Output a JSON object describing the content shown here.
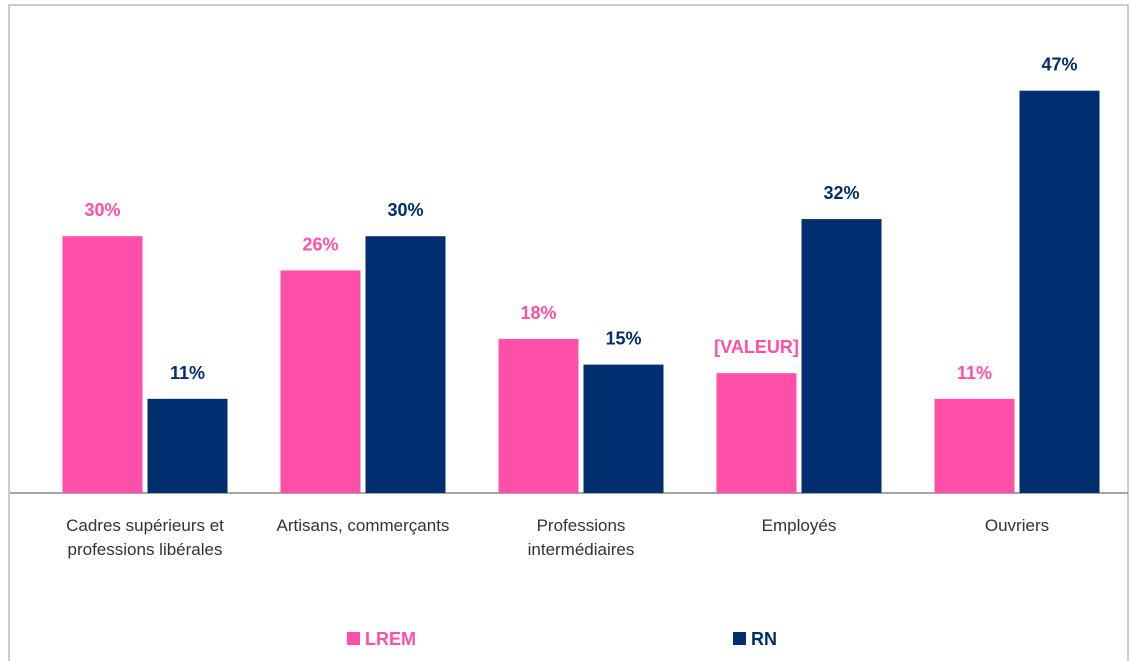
{
  "chart_data": {
    "type": "bar",
    "categories": [
      "Cadres supérieurs et professions libérales",
      "Artisans, commerçants",
      "Professions intermédiaires",
      "Employés",
      "Ouvriers"
    ],
    "series": [
      {
        "name": "LREM",
        "color": "#ff4fa8",
        "values": [
          30,
          26,
          18,
          14,
          11
        ],
        "value_labels": [
          "30%",
          "26%",
          "18%",
          "[VALEUR]",
          "11%"
        ]
      },
      {
        "name": "RN",
        "color": "#002e6e",
        "values": [
          11,
          30,
          15,
          32,
          47
        ],
        "value_labels": [
          "11%",
          "30%",
          "15%",
          "32%",
          "47%"
        ]
      }
    ],
    "ylim": [
      0,
      50
    ],
    "legend": "bottom"
  }
}
